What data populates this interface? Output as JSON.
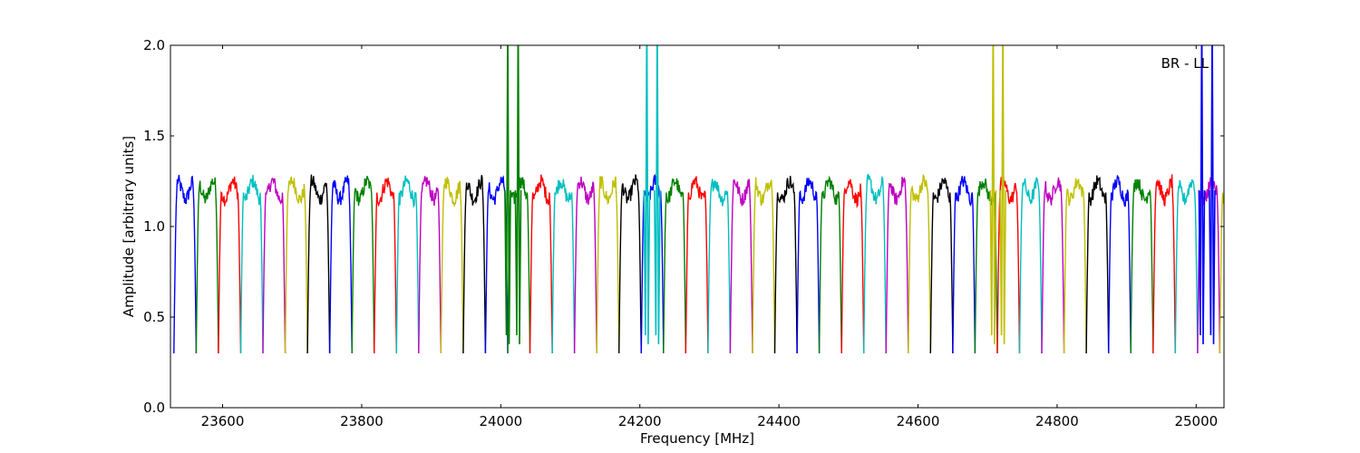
{
  "chart_data": {
    "type": "line",
    "title": "",
    "xlabel": "Frequency [MHz]",
    "ylabel": "Amplitude [arbitrary units]",
    "annotation": "BR - LL",
    "xlim": [
      23525,
      25040
    ],
    "ylim": [
      0.0,
      2.0
    ],
    "x_ticks": [
      23600,
      23800,
      24000,
      24200,
      24400,
      24600,
      24800,
      25000
    ],
    "y_ticks": [
      "0.0",
      "0.5",
      "1.0",
      "1.5",
      "2.0"
    ],
    "grid": false,
    "channel_width_mhz": 32,
    "channel_start_mhz": 23530,
    "color_cycle": [
      "#0000ff",
      "#008000",
      "#ff0000",
      "#00bfbf",
      "#bf00bf",
      "#bfbf00",
      "#000000"
    ],
    "passband_level": 1.2,
    "dip_level": 0.3,
    "rfi_spikes": [
      {
        "x": 24010,
        "color": "#008000",
        "peak": 2.0
      },
      {
        "x": 24025,
        "color": "#008000",
        "peak": 2.0
      },
      {
        "x": 24210,
        "color": "#00bfbf",
        "peak": 2.0
      },
      {
        "x": 24225,
        "color": "#00bfbf",
        "peak": 2.0
      },
      {
        "x": 24708,
        "color": "#bfbf00",
        "peak": 2.0
      },
      {
        "x": 24722,
        "color": "#bfbf00",
        "peak": 2.0
      },
      {
        "x": 25008,
        "color": "#0000ff",
        "peak": 2.0
      },
      {
        "x": 25023,
        "color": "#0000ff",
        "peak": 2.0
      }
    ]
  }
}
